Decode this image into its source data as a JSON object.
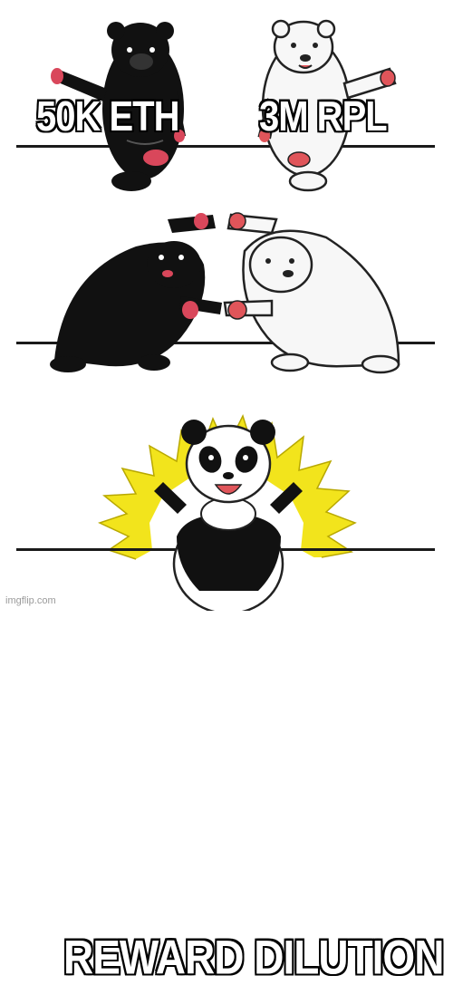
{
  "captions": {
    "left": "50K ETH",
    "right": "3M RPL",
    "bottom": "REWARD DILUTION"
  },
  "watermark": "imgflip.com",
  "colors": {
    "black_bear": "#111111",
    "polar_bear": "#f7f7f7",
    "panda_accent": "#111111",
    "aura": "#f2e41c",
    "paw_pads": "#e0555a"
  }
}
